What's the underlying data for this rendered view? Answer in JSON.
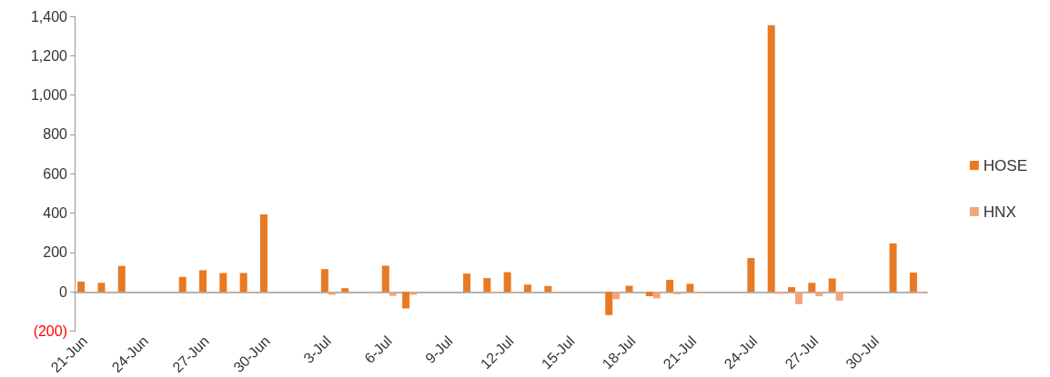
{
  "chart_data": {
    "type": "bar",
    "categories": [
      "21-Jun",
      null,
      null,
      "24-Jun",
      null,
      null,
      "27-Jun",
      null,
      null,
      "30-Jun",
      null,
      null,
      "3-Jul",
      null,
      null,
      "6-Jul",
      null,
      null,
      "9-Jul",
      null,
      null,
      "12-Jul",
      null,
      null,
      "15-Jul",
      null,
      null,
      "18-Jul",
      null,
      null,
      "21-Jul",
      null,
      null,
      "24-Jul",
      null,
      null,
      "27-Jul",
      null,
      null,
      "30-Jul",
      null,
      null
    ],
    "series": [
      {
        "name": "HOSE",
        "color": "#e87a23",
        "values": [
          52,
          46,
          132,
          null,
          null,
          76,
          110,
          96,
          96,
          394,
          null,
          null,
          116,
          19,
          0,
          133,
          -84,
          null,
          null,
          93,
          70,
          100,
          37,
          30,
          null,
          null,
          -118,
          31,
          -22,
          61,
          41,
          null,
          null,
          172,
          1355,
          24,
          46,
          68,
          null,
          null,
          246,
          98
        ]
      },
      {
        "name": "HNX",
        "color": "#f2a47e",
        "values": [
          -5,
          -5,
          0,
          null,
          null,
          0,
          null,
          -5,
          -5,
          0,
          null,
          null,
          -15,
          0,
          -5,
          -20,
          -15,
          null,
          null,
          0,
          -7,
          -7,
          0,
          -7,
          null,
          null,
          -37,
          0,
          -33,
          -12,
          -7,
          null,
          null,
          0,
          -10,
          -62,
          -22,
          -44,
          null,
          null,
          0,
          -7
        ]
      }
    ],
    "ylim": [
      -200,
      1400
    ],
    "yticks": [
      {
        "value": -200,
        "label": "(200)"
      },
      {
        "value": 0,
        "label": "0"
      },
      {
        "value": 200,
        "label": "200"
      },
      {
        "value": 400,
        "label": "400"
      },
      {
        "value": 600,
        "label": "600"
      },
      {
        "value": 800,
        "label": "800"
      },
      {
        "value": 1000,
        "label": "1,000"
      },
      {
        "value": 1200,
        "label": "1,200"
      },
      {
        "value": 1400,
        "label": "1,400"
      }
    ],
    "legend": "right"
  }
}
